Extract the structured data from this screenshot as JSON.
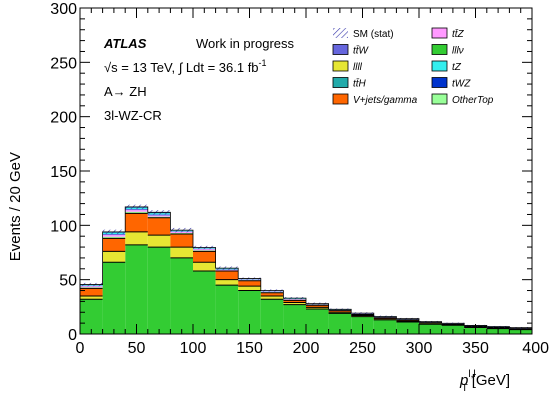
{
  "chart_data": {
    "type": "bar",
    "subtype": "stacked-histogram",
    "xlabel": "p_T^{l,l} [GeV]",
    "xlabel_main": "p",
    "xlabel_sub": "T",
    "xlabel_sup": "l,l",
    "xlabel_unit": "[GeV]",
    "ylabel": "Events / 20 GeV",
    "xlim": [
      0,
      400
    ],
    "ylim": [
      0,
      300
    ],
    "x_ticks": [
      "0",
      "50",
      "100",
      "150",
      "200",
      "250",
      "300",
      "350",
      "400"
    ],
    "y_ticks": [
      "0",
      "50",
      "100",
      "150",
      "200",
      "250",
      "300"
    ],
    "bin_edges": [
      0,
      20,
      40,
      60,
      80,
      100,
      120,
      140,
      160,
      180,
      200,
      220,
      240,
      260,
      280,
      300,
      320,
      340,
      360,
      380,
      400
    ],
    "series": [
      {
        "name": "lllν",
        "color": "#33cc33",
        "values": [
          32,
          66,
          82,
          80,
          70,
          58,
          45,
          40,
          32,
          27,
          23,
          19,
          16,
          13,
          11,
          9,
          8,
          6,
          5,
          4
        ]
      },
      {
        "name": "llll",
        "color": "#e6e633",
        "values": [
          3,
          10,
          12,
          11,
          10,
          8,
          5,
          4,
          3,
          2,
          1.5,
          1,
          1,
          1,
          1,
          1,
          0.5,
          0.5,
          0.5,
          0.5
        ]
      },
      {
        "name": "V+jets/gamma",
        "color": "#ff6600",
        "values": [
          7,
          12,
          17,
          16,
          12,
          10,
          8,
          5,
          3,
          2,
          2,
          1.5,
          1,
          1,
          1,
          0.5,
          0.5,
          0.5,
          0.5,
          0.5
        ]
      },
      {
        "name": "OtherTop",
        "color": "#99ff99",
        "values": [
          1,
          1.5,
          1.5,
          1,
          1,
          1,
          0.5,
          0.5,
          0.5,
          0.5,
          0.5,
          0.3,
          0.3,
          0.3,
          0.3,
          0.3,
          0.3,
          0.3,
          0.3,
          0.3
        ]
      },
      {
        "name": "ttZ",
        "color": "#ff99ff",
        "values": [
          1,
          1.5,
          1.5,
          1,
          1,
          1,
          0.5,
          0.5,
          0.5,
          0.5,
          0.3,
          0.3,
          0.3,
          0.2,
          0.2,
          0.2,
          0.2,
          0.2,
          0.2,
          0.2
        ]
      },
      {
        "name": "ttW",
        "color": "#6666dd",
        "values": [
          0.5,
          1,
          1,
          1,
          0.5,
          0.5,
          0.5,
          0.3,
          0.3,
          0.3,
          0.2,
          0.2,
          0.2,
          0.2,
          0.2,
          0.1,
          0.1,
          0.1,
          0.1,
          0.1
        ]
      },
      {
        "name": "tZ",
        "color": "#33eeee",
        "values": [
          0.5,
          1,
          1,
          1,
          0.5,
          0.5,
          0.5,
          0.3,
          0.3,
          0.3,
          0.2,
          0.2,
          0.2,
          0.2,
          0.2,
          0.1,
          0.1,
          0.1,
          0.1,
          0.1
        ]
      },
      {
        "name": "ttH",
        "color": "#22aaaa",
        "values": [
          0.3,
          0.5,
          0.5,
          0.5,
          0.3,
          0.3,
          0.3,
          0.2,
          0.2,
          0.2,
          0.1,
          0.1,
          0.1,
          0.1,
          0.1,
          0.1,
          0.1,
          0.1,
          0.1,
          0.1
        ]
      },
      {
        "name": "tWZ",
        "color": "#0033cc",
        "values": [
          0.2,
          0.5,
          0.5,
          0.5,
          0.3,
          0.3,
          0.3,
          0.2,
          0.2,
          0.2,
          0.1,
          0.1,
          0.1,
          0.1,
          0.1,
          0.1,
          0.1,
          0.1,
          0.1,
          0.1
        ]
      }
    ],
    "stat_band_name": "SM (stat)",
    "stat_uncertainty": [
      1.5,
      2,
      2,
      2,
      2,
      1.5,
      1.5,
      1,
      1,
      1,
      1,
      0.8,
      0.8,
      0.8,
      0.7,
      0.6,
      0.6,
      0.5,
      0.5,
      0.5
    ],
    "legend_position": "top-right",
    "legend": [
      {
        "key": "stat",
        "label": "SM (stat)",
        "italic": false,
        "type": "hatch"
      },
      {
        "key": "ttZ",
        "label": "tt̄Z",
        "italic": true,
        "type": "box",
        "color": "#ff99ff"
      },
      {
        "key": "ttW",
        "label": "tt̄W",
        "italic": true,
        "type": "box",
        "color": "#6666dd"
      },
      {
        "key": "lllv",
        "label": "lllν",
        "italic": true,
        "type": "box",
        "color": "#33cc33"
      },
      {
        "key": "llll",
        "label": "llll",
        "italic": true,
        "type": "box",
        "color": "#e6e633"
      },
      {
        "key": "tZ",
        "label": "tZ",
        "italic": true,
        "type": "box",
        "color": "#33eeee"
      },
      {
        "key": "ttH",
        "label": "tt̄H",
        "italic": true,
        "type": "box",
        "color": "#22aaaa"
      },
      {
        "key": "tWZ",
        "label": "tWZ",
        "italic": true,
        "type": "box",
        "color": "#0033cc"
      },
      {
        "key": "vjets",
        "label": "V+jets/gamma",
        "italic": true,
        "type": "box",
        "color": "#ff6600"
      },
      {
        "key": "othertop",
        "label": "OtherTop",
        "italic": true,
        "type": "box",
        "color": "#99ff99"
      }
    ],
    "annotations": {
      "atlas": "ATLAS",
      "status": "Work in progress",
      "energy_lumi": "√s = 13 TeV, ∫ Ldt = 36.1 fb",
      "lumi_sup": "-1",
      "process": "A→ ZH",
      "region": "3l-WZ-CR"
    }
  }
}
